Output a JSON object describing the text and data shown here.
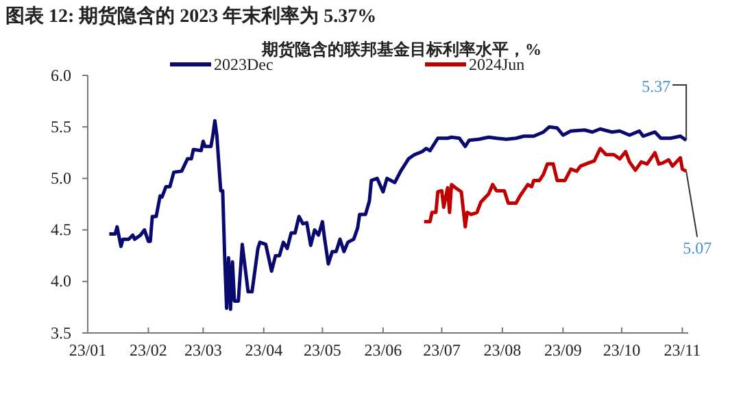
{
  "chart_data": {
    "type": "line",
    "title": "图表 12: 期货隐含的 2023 年末利率为 5.37%",
    "subtitle": "期货隐含的联邦基金目标利率水平，%",
    "xlim": [
      "2023-01-01",
      "2023-11-04"
    ],
    "xticks": [
      {
        "value": "2023-01-01",
        "label": "23/01"
      },
      {
        "value": "2023-02-01",
        "label": "23/02"
      },
      {
        "value": "2023-03-01",
        "label": "23/03"
      },
      {
        "value": "2023-04-01",
        "label": "23/04"
      },
      {
        "value": "2023-05-01",
        "label": "23/05"
      },
      {
        "value": "2023-06-01",
        "label": "23/06"
      },
      {
        "value": "2023-07-01",
        "label": "23/07"
      },
      {
        "value": "2023-08-01",
        "label": "23/08"
      },
      {
        "value": "2023-09-01",
        "label": "23/09"
      },
      {
        "value": "2023-10-01",
        "label": "23/10"
      },
      {
        "value": "2023-11-01",
        "label": "23/11"
      }
    ],
    "ylim": [
      3.5,
      6
    ],
    "yticks": [
      {
        "value": 3.5,
        "label": "3.5"
      },
      {
        "value": 4,
        "label": "4.0"
      },
      {
        "value": 4.5,
        "label": "4.5"
      },
      {
        "value": 5,
        "label": "5.0"
      },
      {
        "value": 5.5,
        "label": "5.5"
      },
      {
        "value": 6,
        "label": "6.0"
      }
    ],
    "grid": false,
    "legend": "top",
    "marker": "none",
    "line_style": "solid",
    "series": [
      {
        "name": "2023Dec",
        "color": "#0a0a6e",
        "x": [
          "2023-01-12",
          "2023-01-15",
          "2023-01-16",
          "2023-01-18",
          "2023-01-19",
          "2023-01-22",
          "2023-01-24",
          "2023-01-25",
          "2023-01-28",
          "2023-01-30",
          "2023-02-01",
          "2023-02-02",
          "2023-02-03",
          "2023-02-05",
          "2023-02-07",
          "2023-02-08",
          "2023-02-10",
          "2023-02-12",
          "2023-02-14",
          "2023-02-18",
          "2023-02-21",
          "2023-02-23",
          "2023-02-24",
          "2023-02-28",
          "2023-03-01",
          "2023-03-02",
          "2023-03-05",
          "2023-03-06",
          "2023-03-07",
          "2023-03-08",
          "2023-03-10",
          "2023-03-11",
          "2023-03-12",
          "2023-03-13",
          "2023-03-14",
          "2023-03-15",
          "2023-03-16",
          "2023-03-17",
          "2023-03-19",
          "2023-03-21",
          "2023-03-24",
          "2023-03-26",
          "2023-03-29",
          "2023-03-30",
          "2023-04-02",
          "2023-04-05",
          "2023-04-07",
          "2023-04-09",
          "2023-04-11",
          "2023-04-13",
          "2023-04-15",
          "2023-04-17",
          "2023-04-19",
          "2023-04-21",
          "2023-04-23",
          "2023-04-25",
          "2023-04-27",
          "2023-04-29",
          "2023-05-01",
          "2023-05-02",
          "2023-05-04",
          "2023-05-06",
          "2023-05-08",
          "2023-05-10",
          "2023-05-12",
          "2023-05-14",
          "2023-05-17",
          "2023-05-19",
          "2023-05-20",
          "2023-05-23",
          "2023-05-25",
          "2023-05-26",
          "2023-05-29",
          "2023-06-01",
          "2023-06-03",
          "2023-06-07",
          "2023-06-10",
          "2023-06-14",
          "2023-06-17",
          "2023-06-21",
          "2023-06-23",
          "2023-06-25",
          "2023-06-29",
          "2023-07-04",
          "2023-07-06",
          "2023-07-10",
          "2023-07-13",
          "2023-07-15",
          "2023-07-20",
          "2023-07-25",
          "2023-07-29",
          "2023-08-03",
          "2023-08-08",
          "2023-08-12",
          "2023-08-17",
          "2023-08-22",
          "2023-08-25",
          "2023-08-29",
          "2023-09-01",
          "2023-09-05",
          "2023-09-12",
          "2023-09-16",
          "2023-09-20",
          "2023-09-26",
          "2023-09-30",
          "2023-10-05",
          "2023-10-10",
          "2023-10-12",
          "2023-10-18",
          "2023-10-21",
          "2023-10-26",
          "2023-10-31",
          "2023-11-03"
        ],
        "values": [
          4.46,
          4.46,
          4.53,
          4.34,
          4.41,
          4.41,
          4.45,
          4.41,
          4.45,
          4.5,
          4.39,
          4.39,
          4.63,
          4.63,
          4.83,
          4.82,
          4.92,
          4.92,
          5.06,
          5.07,
          5.19,
          5.19,
          5.28,
          5.27,
          5.36,
          5.31,
          5.31,
          5.42,
          5.56,
          5.42,
          4.88,
          4.88,
          4.25,
          3.74,
          4.23,
          3.73,
          4.19,
          3.81,
          3.81,
          4.36,
          3.9,
          3.9,
          4.32,
          4.38,
          4.36,
          4.1,
          4.25,
          4.25,
          4.38,
          4.32,
          4.47,
          4.47,
          4.63,
          4.56,
          4.57,
          4.35,
          4.5,
          4.45,
          4.58,
          4.43,
          4.17,
          4.29,
          4.29,
          4.41,
          4.29,
          4.38,
          4.41,
          4.52,
          4.65,
          4.65,
          4.78,
          4.98,
          5.0,
          4.87,
          5.0,
          4.96,
          5.07,
          5.19,
          5.23,
          5.26,
          5.29,
          5.27,
          5.39,
          5.39,
          5.4,
          5.39,
          5.31,
          5.37,
          5.38,
          5.4,
          5.39,
          5.38,
          5.39,
          5.41,
          5.41,
          5.45,
          5.5,
          5.49,
          5.42,
          5.46,
          5.47,
          5.45,
          5.48,
          5.45,
          5.46,
          5.42,
          5.46,
          5.41,
          5.45,
          5.39,
          5.39,
          5.41,
          5.37
        ]
      },
      {
        "name": "2024Jun",
        "color": "#c00000",
        "x": [
          "2023-06-22",
          "2023-06-25",
          "2023-06-26",
          "2023-06-28",
          "2023-06-29",
          "2023-07-01",
          "2023-07-02",
          "2023-07-04",
          "2023-07-05",
          "2023-07-06",
          "2023-07-08",
          "2023-07-11",
          "2023-07-13",
          "2023-07-14",
          "2023-07-16",
          "2023-07-19",
          "2023-07-21",
          "2023-07-25",
          "2023-07-27",
          "2023-07-29",
          "2023-08-02",
          "2023-08-04",
          "2023-08-08",
          "2023-08-10",
          "2023-08-14",
          "2023-08-16",
          "2023-08-17",
          "2023-08-20",
          "2023-08-22",
          "2023-08-24",
          "2023-08-27",
          "2023-08-29",
          "2023-09-02",
          "2023-09-05",
          "2023-09-08",
          "2023-09-10",
          "2023-09-14",
          "2023-09-17",
          "2023-09-20",
          "2023-09-23",
          "2023-09-27",
          "2023-09-30",
          "2023-10-03",
          "2023-10-05",
          "2023-10-08",
          "2023-10-11",
          "2023-10-14",
          "2023-10-18",
          "2023-10-20",
          "2023-10-22",
          "2023-10-25",
          "2023-10-27",
          "2023-10-31",
          "2023-11-01",
          "2023-11-03"
        ],
        "values": [
          4.58,
          4.58,
          4.67,
          4.67,
          4.87,
          4.88,
          4.72,
          4.91,
          4.67,
          4.94,
          4.91,
          4.87,
          4.53,
          4.67,
          4.65,
          4.67,
          4.77,
          4.85,
          4.94,
          4.88,
          4.88,
          4.76,
          4.76,
          4.83,
          4.94,
          4.92,
          4.98,
          4.98,
          5.04,
          5.14,
          5.14,
          4.98,
          4.98,
          5.09,
          5.07,
          5.12,
          5.15,
          5.17,
          5.29,
          5.23,
          5.23,
          5.19,
          5.26,
          5.16,
          5.08,
          5.16,
          5.14,
          5.25,
          5.14,
          5.15,
          5.18,
          5.12,
          5.2,
          5.09,
          5.07
        ]
      }
    ],
    "annotations": [
      {
        "text": "5.37",
        "x": "2023-11-03",
        "y": 5.37
      },
      {
        "text": "5.07",
        "x": "2023-11-03",
        "y": 5.07
      }
    ]
  }
}
